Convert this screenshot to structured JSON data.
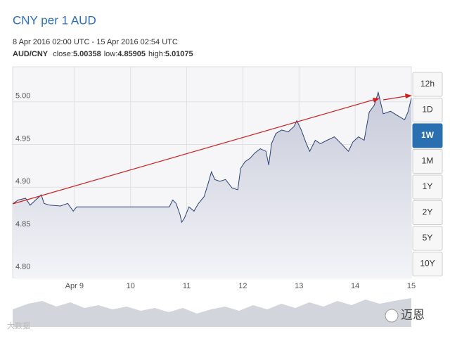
{
  "chart_data": {
    "type": "line",
    "title": "CNY per 1 AUD",
    "subtitle": "8 Apr 2016 02:00 UTC - 15 Apr 2016 02:54 UTC",
    "pair": "AUD/CNY",
    "stats": [
      {
        "label": "close:",
        "value": 5.00358
      },
      {
        "label": "low:",
        "value": 4.85905
      },
      {
        "label": "high:",
        "value": 5.01075
      }
    ],
    "ranges": [
      "12h",
      "1D",
      "1W",
      "1M",
      "1Y",
      "2Y",
      "5Y",
      "10Y"
    ],
    "selected_range": "1W",
    "watermarks": [
      "迈恩",
      "大数据"
    ],
    "xlim": [
      7.9,
      15.0
    ],
    "xticks": [
      {
        "value": 9,
        "label": "Apr 9"
      },
      10,
      11,
      12,
      13,
      14,
      15
    ],
    "ylim": [
      4.794,
      5.041
    ],
    "yticks": [
      {
        "value": 4.8,
        "label": "4.80"
      },
      {
        "value": 4.85,
        "label": "4.85"
      },
      {
        "value": 4.9,
        "label": "4.90"
      },
      {
        "value": 4.95,
        "label": "4.95"
      },
      {
        "value": 5,
        "label": "5.00"
      }
    ],
    "grid": true,
    "series": [
      {
        "color": "#2b3f73",
        "x": [
          7.91,
          8.0,
          8.13,
          8.21,
          8.31,
          8.41,
          8.46,
          8.56,
          8.75,
          8.88,
          8.98,
          9.04,
          9.19,
          10.69,
          10.75,
          10.81,
          10.88,
          10.91,
          10.96,
          11.04,
          11.13,
          11.21,
          11.31,
          11.38,
          11.44,
          11.5,
          11.59,
          11.69,
          11.81,
          11.91,
          11.96,
          12.04,
          12.13,
          12.21,
          12.31,
          12.41,
          12.46,
          12.51,
          12.59,
          12.69,
          12.81,
          12.91,
          12.96,
          13.04,
          13.13,
          13.19,
          13.29,
          13.38,
          13.5,
          13.63,
          13.75,
          13.88,
          13.96,
          14.06,
          14.16,
          14.25,
          14.34,
          14.41,
          14.5,
          14.63,
          14.75,
          14.88,
          14.94,
          15.0
        ],
        "values": [
          4.881,
          4.885,
          4.887,
          4.879,
          4.885,
          4.891,
          4.881,
          4.879,
          4.878,
          4.881,
          4.872,
          4.877,
          4.877,
          4.877,
          4.885,
          4.881,
          4.868,
          4.859,
          4.864,
          4.877,
          4.872,
          4.881,
          4.889,
          4.904,
          4.918,
          4.909,
          4.907,
          4.909,
          4.899,
          4.897,
          4.922,
          4.93,
          4.934,
          4.94,
          4.945,
          4.942,
          4.926,
          4.951,
          4.963,
          4.967,
          4.965,
          4.971,
          4.978,
          4.967,
          4.951,
          4.942,
          4.955,
          4.951,
          4.955,
          4.959,
          4.951,
          4.942,
          4.953,
          4.959,
          4.955,
          4.988,
          4.996,
          5.011,
          4.986,
          4.989,
          4.984,
          4.979,
          4.988,
          5.004
        ]
      }
    ]
  }
}
